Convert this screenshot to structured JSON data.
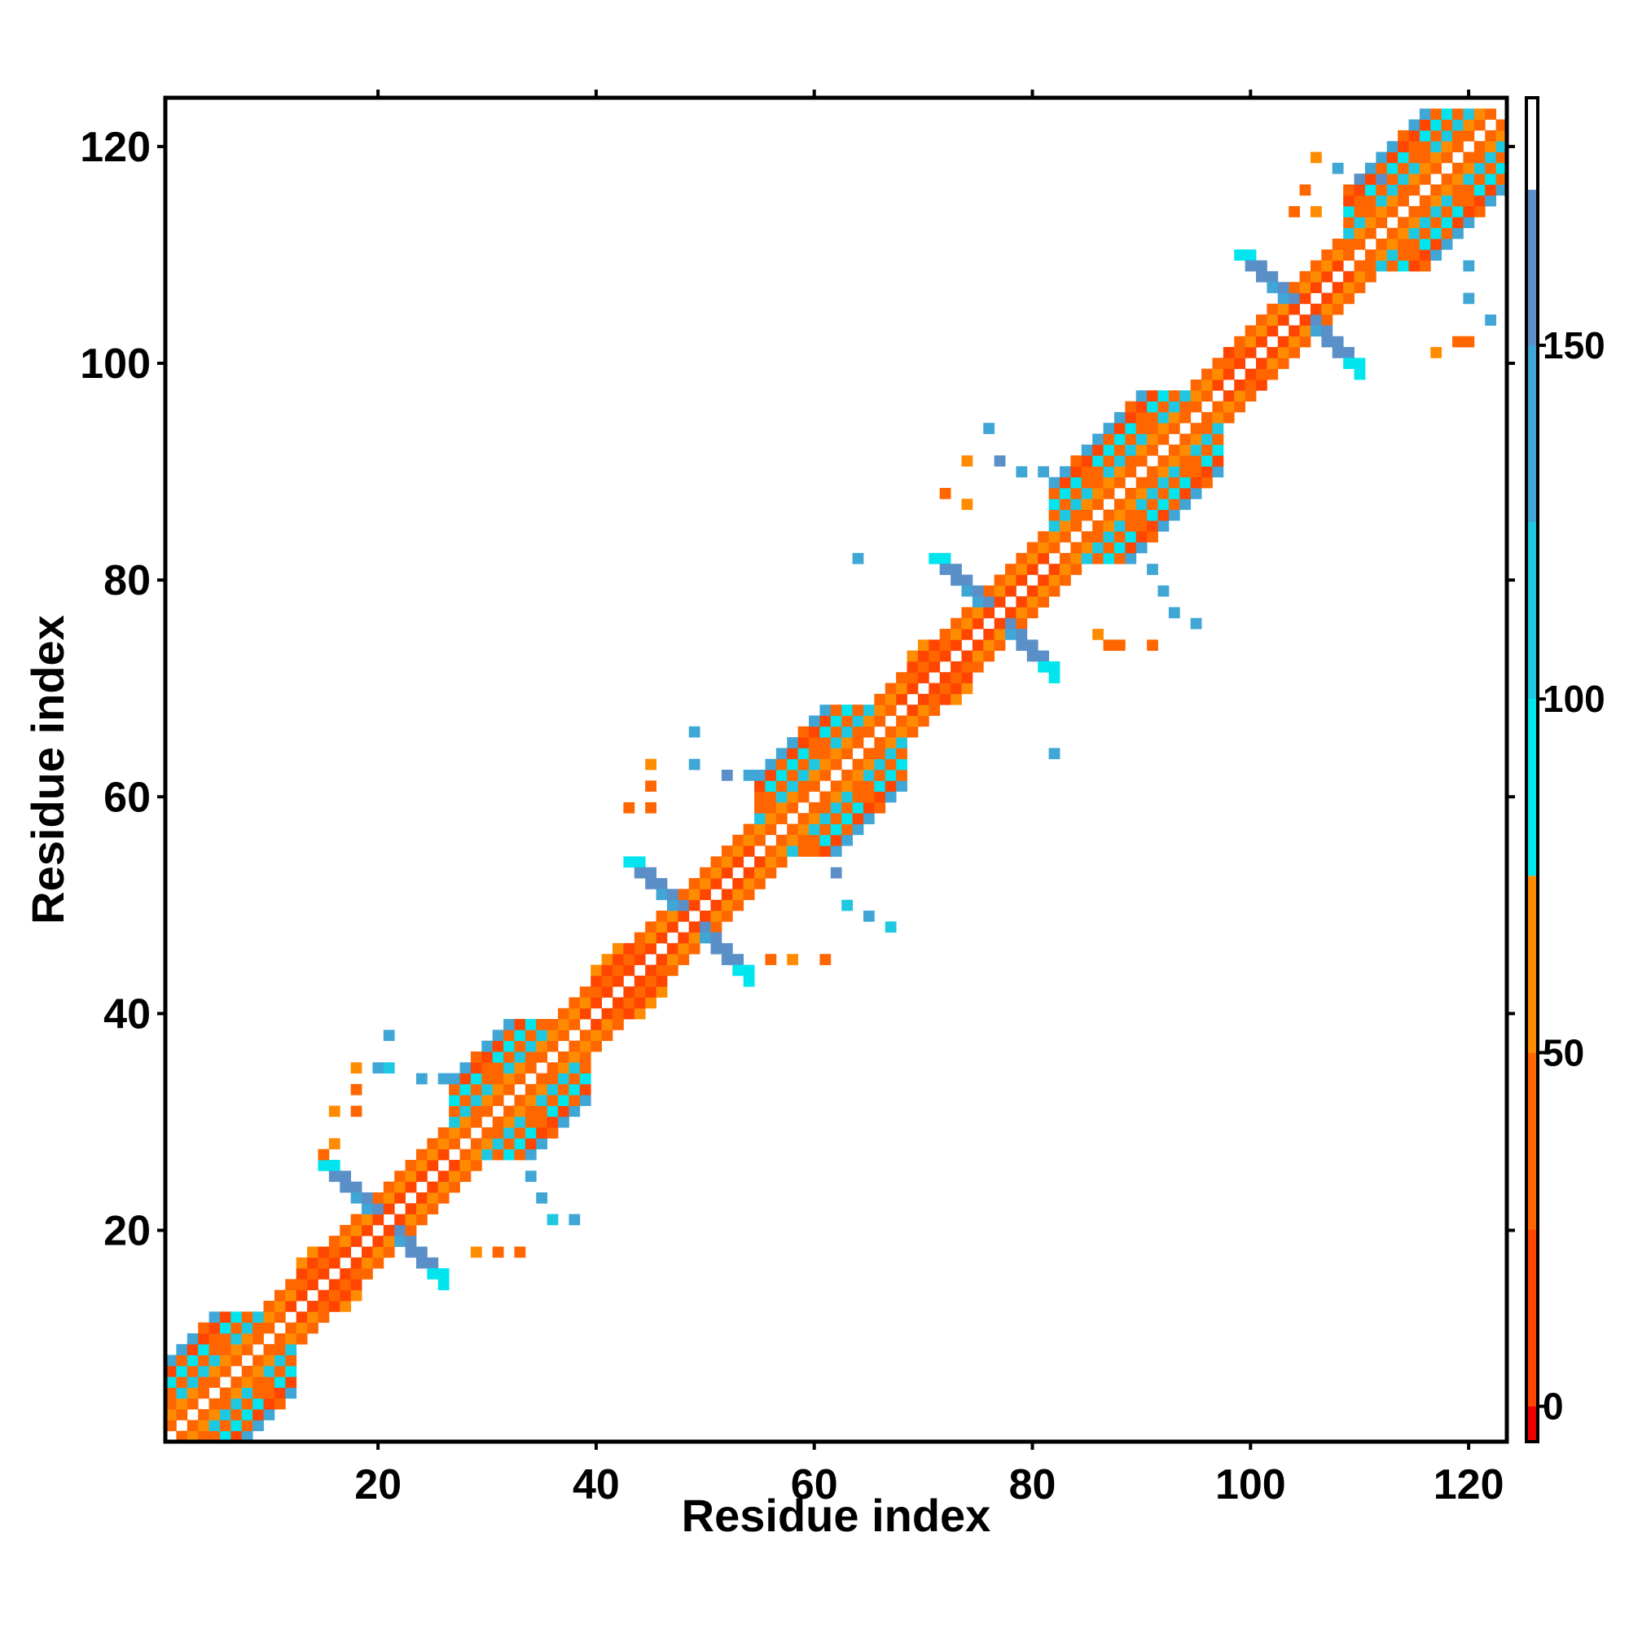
{
  "chart_data": {
    "type": "heatmap",
    "title": "",
    "xlabel": "Residue index",
    "ylabel": "Residue index",
    "xlim": [
      1,
      123
    ],
    "ylim": [
      1,
      124
    ],
    "x_ticks": [
      20,
      40,
      60,
      80,
      100,
      120
    ],
    "y_ticks": [
      20,
      40,
      60,
      80,
      100,
      120
    ],
    "colorbar": {
      "range": [
        -5,
        185
      ],
      "ticks": [
        0,
        50,
        100,
        150
      ],
      "bands": [
        {
          "from": -5,
          "to": 0,
          "color": "#ee0000"
        },
        {
          "from": 0,
          "to": 25,
          "color": "#ff4500"
        },
        {
          "from": 25,
          "to": 50,
          "color": "#ff6600"
        },
        {
          "from": 50,
          "to": 75,
          "color": "#ff8c00"
        },
        {
          "from": 75,
          "to": 100,
          "color": "#00e5ee"
        },
        {
          "from": 100,
          "to": 125,
          "color": "#1ec8e0"
        },
        {
          "from": 125,
          "to": 150,
          "color": "#3fa6d6"
        },
        {
          "from": 150,
          "to": 172,
          "color": "#5b8fc8"
        },
        {
          "from": 172,
          "to": 185,
          "color": "#ffffff"
        }
      ]
    },
    "segments": [
      {
        "start": 1,
        "end": 13,
        "kind": "helix"
      },
      {
        "start": 13,
        "end": 19,
        "kind": "loop"
      },
      {
        "start": 19,
        "end": 27,
        "kind": "turn"
      },
      {
        "start": 27,
        "end": 40,
        "kind": "helix"
      },
      {
        "start": 40,
        "end": 47,
        "kind": "loop"
      },
      {
        "start": 47,
        "end": 55,
        "kind": "turn"
      },
      {
        "start": 55,
        "end": 69,
        "kind": "helix"
      },
      {
        "start": 69,
        "end": 75,
        "kind": "loop"
      },
      {
        "start": 75,
        "end": 82,
        "kind": "turn"
      },
      {
        "start": 82,
        "end": 98,
        "kind": "helix"
      },
      {
        "start": 98,
        "end": 102,
        "kind": "loop"
      },
      {
        "start": 102,
        "end": 109,
        "kind": "turn"
      },
      {
        "start": 109,
        "end": 123,
        "kind": "helix"
      }
    ],
    "hinges": [
      {
        "center": 20.5,
        "spread": 5
      },
      {
        "center": 48.5,
        "spread": 5
      },
      {
        "center": 76.5,
        "spread": 5
      },
      {
        "center": 104.5,
        "spread": 5
      }
    ],
    "sparse_cells": [
      [
        21,
        38,
        140
      ],
      [
        20,
        35,
        130
      ],
      [
        21,
        35,
        110
      ],
      [
        24,
        34,
        130
      ],
      [
        26,
        34,
        140
      ],
      [
        18,
        35,
        50
      ],
      [
        18,
        33,
        40
      ],
      [
        16,
        31,
        60
      ],
      [
        18,
        31,
        30
      ],
      [
        16,
        28,
        50
      ],
      [
        15,
        27,
        40
      ],
      [
        34,
        25,
        140
      ],
      [
        35,
        23,
        130
      ],
      [
        36,
        21,
        120
      ],
      [
        38,
        21,
        140
      ],
      [
        29,
        18,
        60
      ],
      [
        31,
        18,
        40
      ],
      [
        33,
        18,
        40
      ],
      [
        49,
        66,
        130
      ],
      [
        49,
        63,
        140
      ],
      [
        52,
        62,
        150
      ],
      [
        54,
        62,
        130
      ],
      [
        45,
        63,
        50
      ],
      [
        45,
        61,
        40
      ],
      [
        43,
        59,
        40
      ],
      [
        45,
        59,
        30
      ],
      [
        62,
        53,
        150
      ],
      [
        63,
        50,
        120
      ],
      [
        65,
        49,
        130
      ],
      [
        67,
        48,
        120
      ],
      [
        56,
        45,
        40
      ],
      [
        58,
        45,
        60
      ],
      [
        61,
        45,
        30
      ],
      [
        76,
        94,
        130
      ],
      [
        77,
        91,
        150
      ],
      [
        79,
        90,
        130
      ],
      [
        81,
        90,
        130
      ],
      [
        74,
        91,
        60
      ],
      [
        72,
        88,
        40
      ],
      [
        74,
        87,
        60
      ],
      [
        64,
        82,
        140
      ],
      [
        82,
        64,
        140
      ],
      [
        91,
        81,
        130
      ],
      [
        92,
        79,
        140
      ],
      [
        93,
        77,
        130
      ],
      [
        95,
        76,
        130
      ],
      [
        86,
        75,
        60
      ],
      [
        87,
        74,
        40
      ],
      [
        88,
        74,
        40
      ],
      [
        91,
        74,
        40
      ],
      [
        106,
        119,
        60
      ],
      [
        108,
        118,
        130
      ],
      [
        110,
        117,
        150
      ],
      [
        112,
        117,
        150
      ],
      [
        105,
        116,
        40
      ],
      [
        104,
        114,
        40
      ],
      [
        106,
        114,
        60
      ],
      [
        120,
        109,
        130
      ],
      [
        120,
        106,
        140
      ],
      [
        122,
        104,
        130
      ],
      [
        119,
        102,
        40
      ],
      [
        120,
        102,
        30
      ],
      [
        117,
        101,
        60
      ]
    ]
  }
}
